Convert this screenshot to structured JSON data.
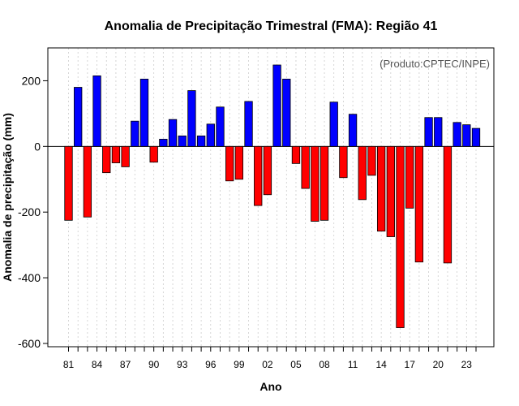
{
  "chart_data": {
    "type": "bar",
    "title": "Anomalia de Precipitação Trimestral (FMA): Região 41",
    "xlabel": "Ano",
    "ylabel": "Anomalia de precipitação (mm)",
    "annotation": "(Produto:CPTEC/INPE)",
    "ylim": [
      -610,
      300
    ],
    "yticks": [
      -600,
      -400,
      -200,
      0,
      200
    ],
    "xtick_labels": [
      "81",
      "84",
      "87",
      "90",
      "93",
      "96",
      "99",
      "02",
      "05",
      "08",
      "11",
      "14",
      "17",
      "20",
      "23"
    ],
    "positive_color": "#0000ff",
    "negative_color": "#ff0000",
    "categories": [
      "1981",
      "1982",
      "1983",
      "1984",
      "1985",
      "1986",
      "1987",
      "1988",
      "1989",
      "1990",
      "1991",
      "1992",
      "1993",
      "1994",
      "1995",
      "1996",
      "1997",
      "1998",
      "1999",
      "2000",
      "2001",
      "2002",
      "2003",
      "2004",
      "2005",
      "2006",
      "2007",
      "2008",
      "2009",
      "2010",
      "2011",
      "2012",
      "2013",
      "2014",
      "2015",
      "2016",
      "2017",
      "2018",
      "2019",
      "2020",
      "2021",
      "2022",
      "2023",
      "2024"
    ],
    "values": [
      -225,
      180,
      -215,
      215,
      -80,
      -50,
      -62,
      77,
      205,
      -48,
      22,
      82,
      32,
      170,
      32,
      68,
      120,
      -105,
      -100,
      137,
      -180,
      -147,
      248,
      205,
      -52,
      -128,
      -228,
      -225,
      135,
      -95,
      98,
      -162,
      -88,
      -258,
      -275,
      -552,
      -188,
      -352,
      88,
      88,
      -355,
      73,
      66,
      55
    ]
  }
}
